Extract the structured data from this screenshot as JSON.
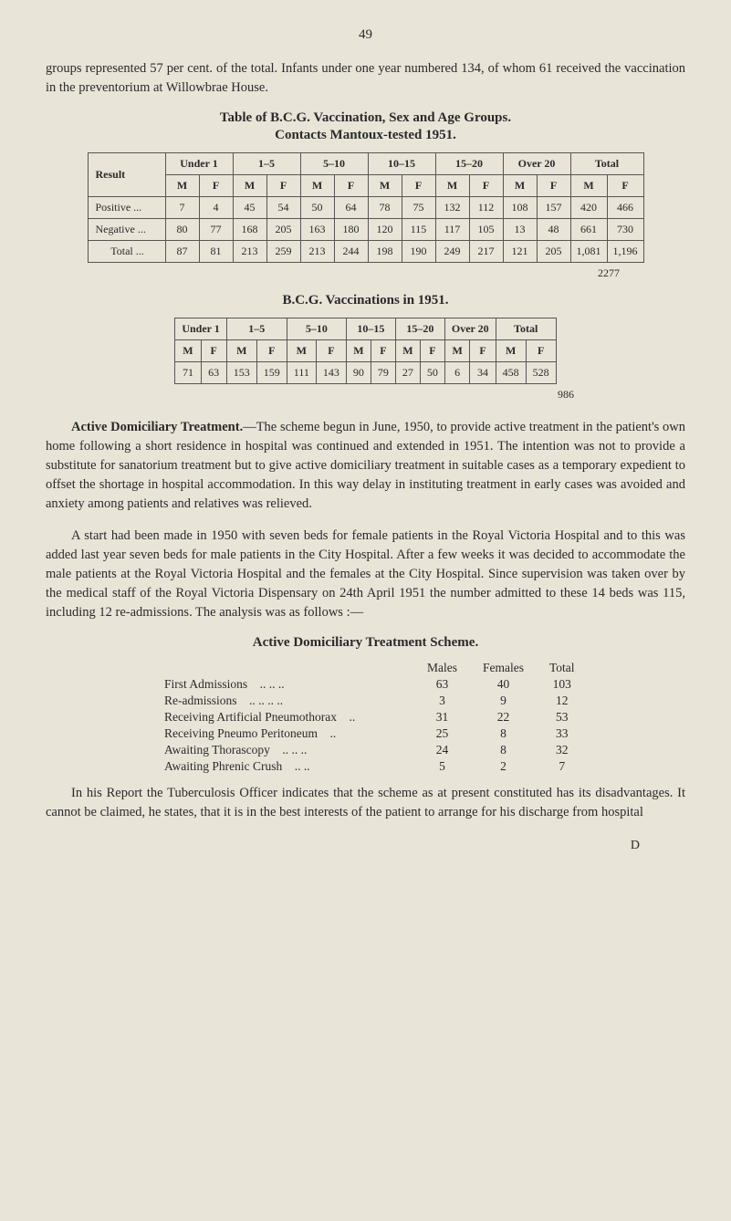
{
  "pageNumber": "49",
  "intro": "groups represented 57 per cent. of the total. Infants under one year numbered 134, of whom 61 received the vaccination in the preventorium at Willowbrae House.",
  "table1": {
    "titleLine1": "Table of B.C.G. Vaccination, Sex and Age Groups.",
    "titleLine2": "Contacts Mantoux-tested 1951.",
    "resultLabel": "Result",
    "ageGroups": [
      "Under 1",
      "1–5",
      "5–10",
      "10–15",
      "15–20",
      "Over 20",
      "Total"
    ],
    "mf": [
      "M",
      "F"
    ],
    "rows": [
      {
        "label": "Positive   ...",
        "cells": [
          "7",
          "4",
          "45",
          "54",
          "50",
          "64",
          "78",
          "75",
          "132",
          "112",
          "108",
          "157",
          "420",
          "466"
        ]
      },
      {
        "label": "Negative  ...",
        "cells": [
          "80",
          "77",
          "168",
          "205",
          "163",
          "180",
          "120",
          "115",
          "117",
          "105",
          "13",
          "48",
          "661",
          "730"
        ]
      }
    ],
    "totalRow": {
      "label": "Total ...",
      "cells": [
        "87",
        "81",
        "213",
        "259",
        "213",
        "244",
        "198",
        "190",
        "249",
        "217",
        "121",
        "205",
        "1,081",
        "1,196"
      ]
    },
    "grandTotal": "2277"
  },
  "bcgTitle": "B.C.G. Vaccinations in 1951.",
  "table2": {
    "ageGroups": [
      "Under 1",
      "1–5",
      "5–10",
      "10–15",
      "15–20",
      "Over 20",
      "Total"
    ],
    "mf": [
      "M",
      "F"
    ],
    "row": [
      "71",
      "63",
      "153",
      "159",
      "111",
      "143",
      "90",
      "79",
      "27",
      "50",
      "6",
      "34",
      "458",
      "528"
    ],
    "grandTotal": "986"
  },
  "para2_lead": "Active Domiciliary Treatment.",
  "para2": "—The scheme begun in June, 1950, to provide active treatment in the patient's own home following a short residence in hospital was continued and extended in 1951. The intention was not to provide a substitute for sanatorium treatment but to give active domiciliary treatment in suitable cases as a temporary expedient to offset the shortage in hospital accommodation. In this way delay in instituting treatment in early cases was avoided and anxiety among patients and relatives was relieved.",
  "para3": "A start had been made in 1950 with seven beds for female patients in the Royal Victoria Hospital and to this was added last year seven beds for male patients in the City Hospital. After a few weeks it was decided to accommodate the male patients at the Royal Victoria Hospital and the females at the City Hospital. Since supervision was taken over by the medical staff of the Royal Victoria Dispensary on 24th April 1951 the number admitted to these 14 beds was 115, including 12 re-admissions. The analysis was as follows :—",
  "schemeTitle": "Active Domiciliary Treatment Scheme.",
  "schemeTable": {
    "headers": [
      "Males",
      "Females",
      "Total"
    ],
    "rows": [
      {
        "label": "First Admissions",
        "dots": "..    ..    ..",
        "cells": [
          "63",
          "40",
          "103"
        ]
      },
      {
        "label": "Re-admissions",
        "dots": "..    ..    ..    ..",
        "cells": [
          "3",
          "9",
          "12"
        ]
      },
      {
        "label": "Receiving Artificial Pneumothorax",
        "dots": "..",
        "cells": [
          "31",
          "22",
          "53"
        ]
      },
      {
        "label": "Receiving Pneumo Peritoneum",
        "dots": "..",
        "cells": [
          "25",
          "8",
          "33"
        ]
      },
      {
        "label": "Awaiting Thorascopy",
        "dots": "..    ..    ..",
        "cells": [
          "24",
          "8",
          "32"
        ]
      },
      {
        "label": "Awaiting Phrenic Crush",
        "dots": "..    ..",
        "cells": [
          "5",
          "2",
          "7"
        ]
      }
    ]
  },
  "para4": "In his Report the Tuberculosis Officer indicates that the scheme as at present constituted has its disadvantages. It cannot be claimed, he states, that it is in the best interests of the patient to arrange for his discharge from hospital",
  "footerD": "D"
}
